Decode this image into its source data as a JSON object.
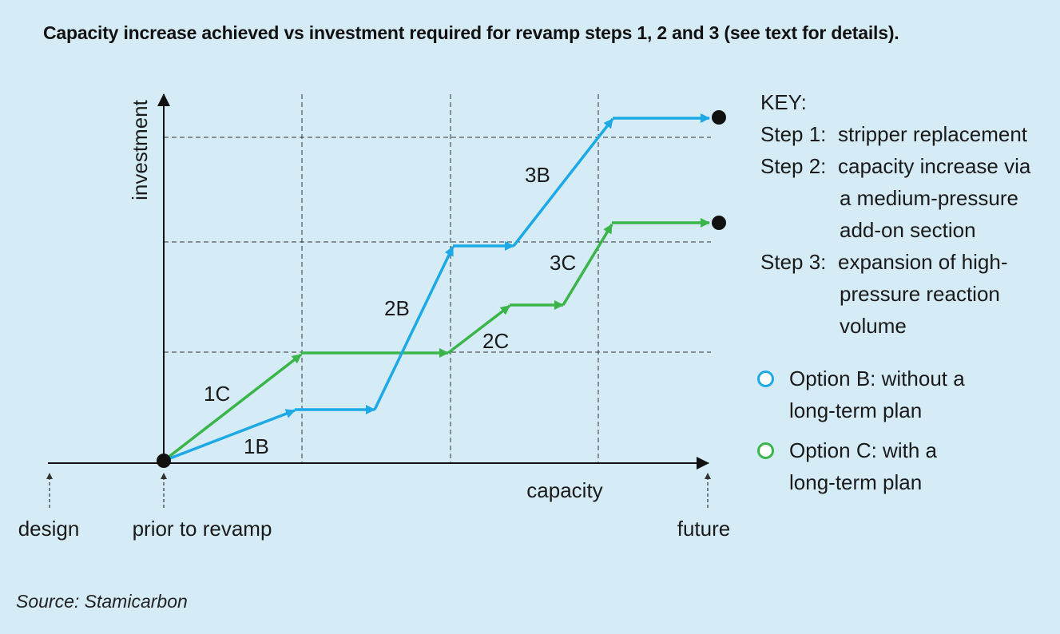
{
  "title": "Capacity increase achieved vs investment required for revamp steps 1, 2 and 3 (see text for details).",
  "source": "Source: Stamicarbon",
  "axes": {
    "y_label": "investment",
    "x_label": "capacity",
    "x_markers": [
      "design",
      "prior to revamp",
      "future"
    ]
  },
  "paths": {
    "option_b": {
      "color": "#1ca9e6",
      "labels": [
        "1B",
        "2B",
        "3B"
      ]
    },
    "option_c": {
      "color": "#3ab54a",
      "labels": [
        "1C",
        "2C",
        "3C"
      ]
    }
  },
  "key": {
    "heading": "KEY:",
    "step1_prefix": "Step 1:",
    "step1_text": "stripper replacement",
    "step2_prefix": "Step 2:",
    "step2_line1": "capacity increase via",
    "step2_line2": "a medium-pressure",
    "step2_line3": "add-on section",
    "step3_prefix": "Step 3:",
    "step3_line1": "expansion of high-",
    "step3_line2": "pressure reaction",
    "step3_line3": "volume",
    "option_b_line1": "Option B: without a",
    "option_b_line2": "long-term plan",
    "option_c_line1": "Option C: with a",
    "option_c_line2": "long-term plan"
  }
}
